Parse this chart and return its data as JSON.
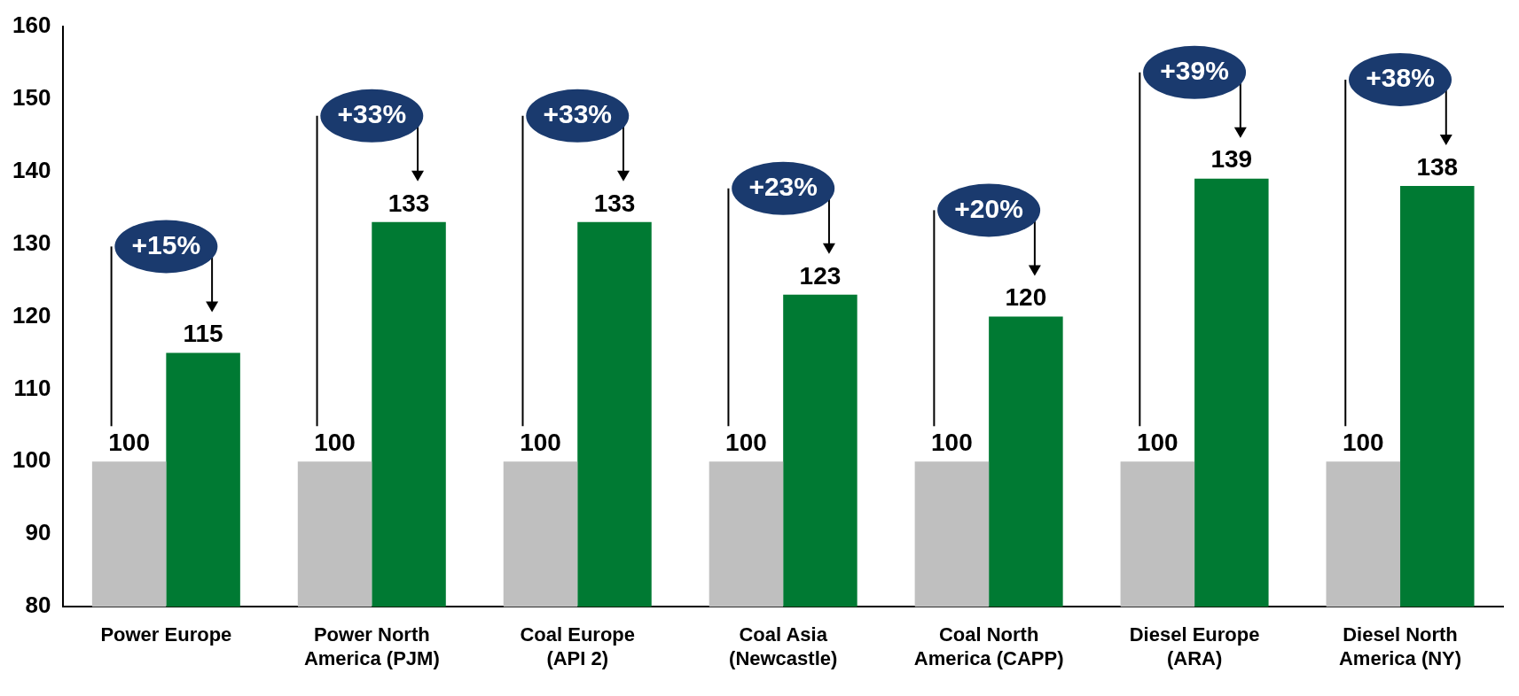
{
  "chart_data": {
    "type": "bar",
    "categories": [
      "Power Europe",
      "Power North America (PJM)",
      "Coal Europe (API 2)",
      "Coal Asia (Newcastle)",
      "Coal North America (CAPP)",
      "Diesel Europe (ARA)",
      "Diesel North America (NY)"
    ],
    "series": [
      {
        "color": "#bfbfbf",
        "values": [
          100,
          100,
          100,
          100,
          100,
          100,
          100
        ]
      },
      {
        "color": "#007a33",
        "values": [
          115,
          133,
          133,
          123,
          120,
          139,
          138
        ]
      }
    ],
    "ylim": [
      80,
      160
    ],
    "yticks": [
      80,
      90,
      100,
      110,
      120,
      130,
      140,
      150,
      160
    ],
    "grid": false,
    "legend": false,
    "data_labels": true,
    "annotations": [
      "+15%",
      "+33%",
      "+33%",
      "+23%",
      "+20%",
      "+39%",
      "+38%"
    ]
  }
}
